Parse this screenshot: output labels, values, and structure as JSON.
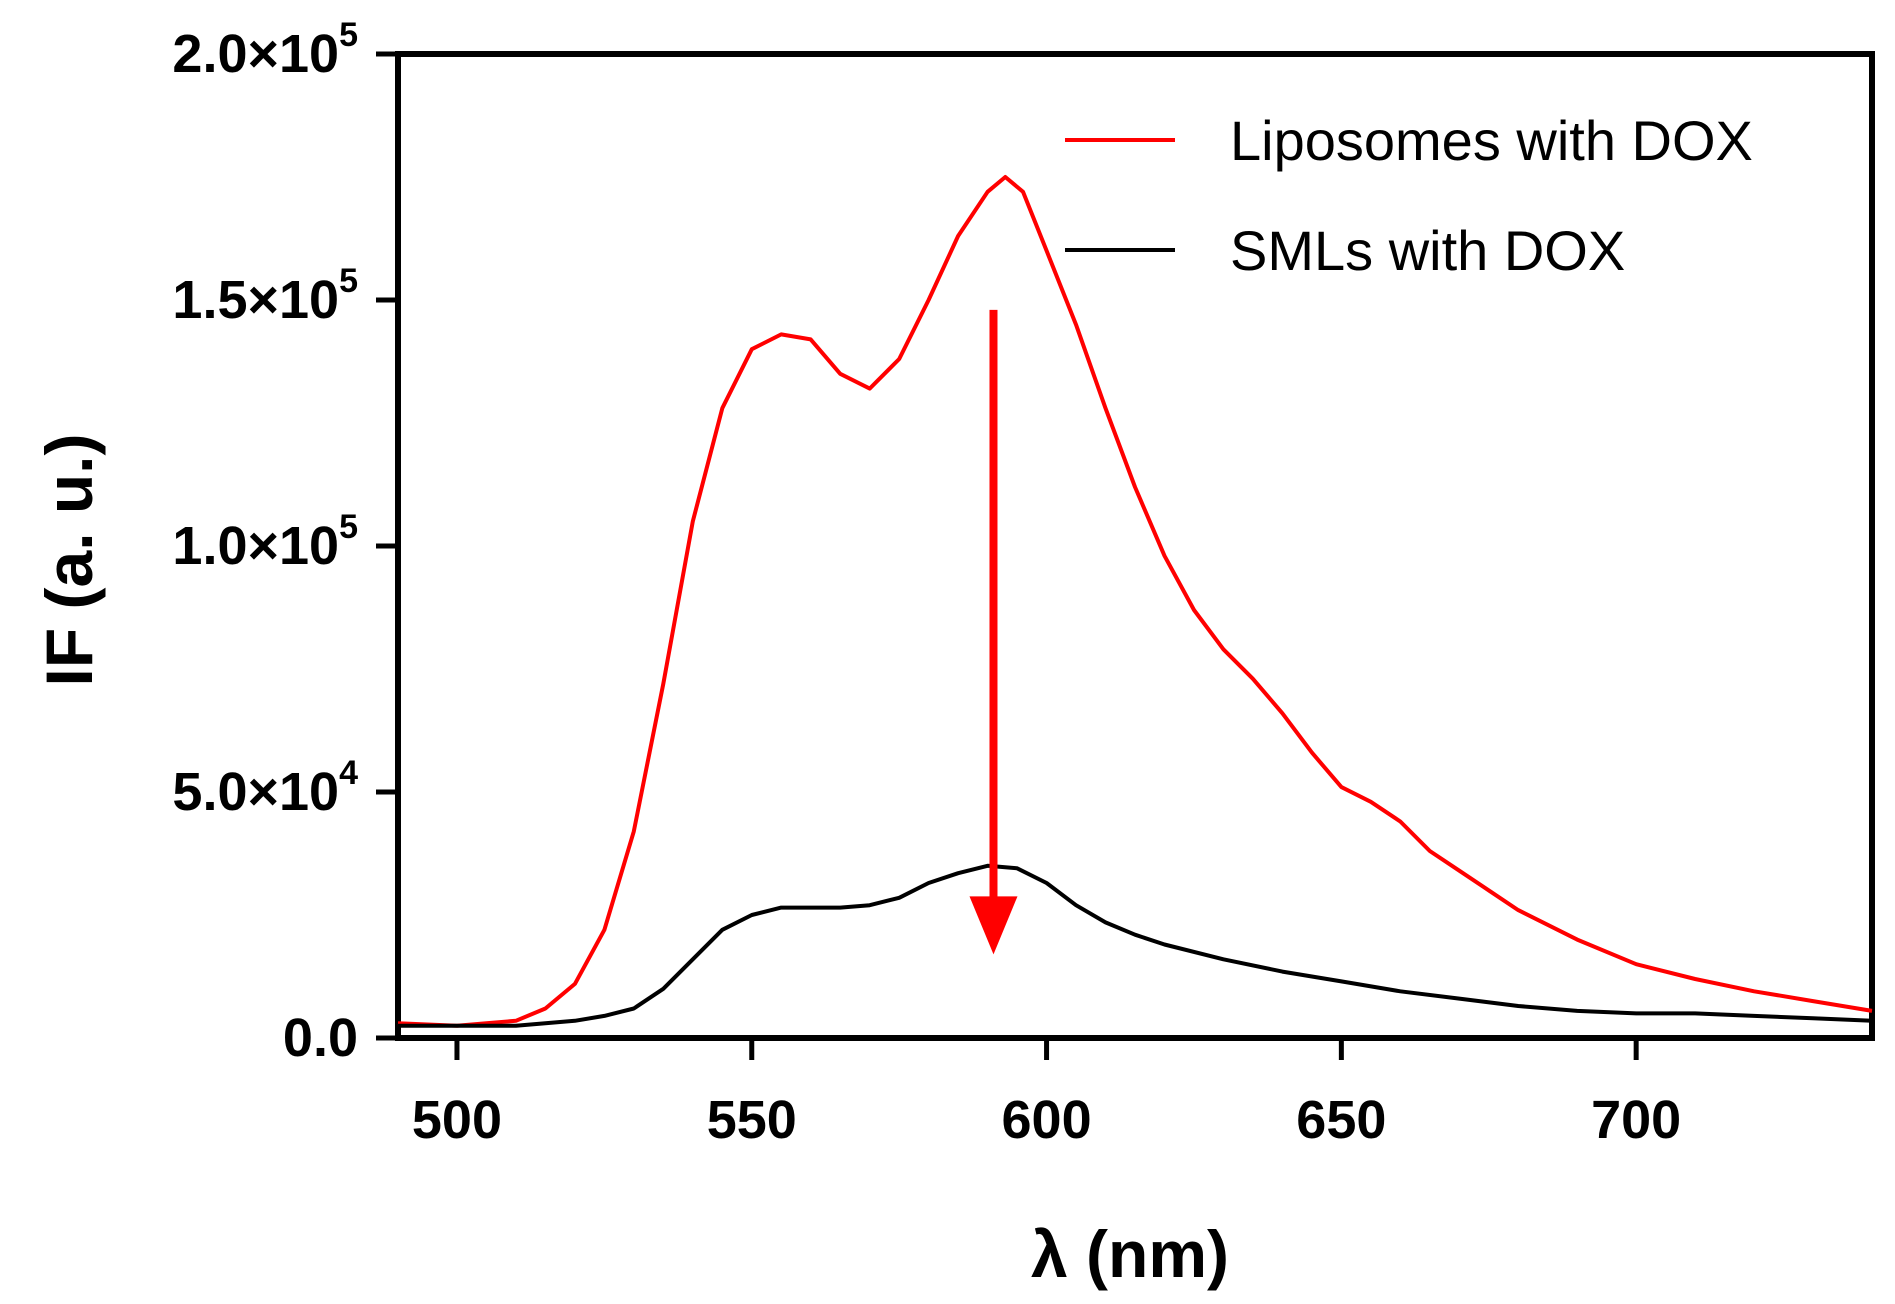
{
  "chart_data": {
    "type": "line",
    "title": "",
    "xlabel": "λ (nm)",
    "ylabel": "IF (a. u.)",
    "xlim": [
      490,
      740
    ],
    "ylim": [
      0,
      200000
    ],
    "x_ticks": [
      {
        "value": 500,
        "label": "500"
      },
      {
        "value": 550,
        "label": "550"
      },
      {
        "value": 600,
        "label": "600"
      },
      {
        "value": 650,
        "label": "650"
      },
      {
        "value": 700,
        "label": "700"
      }
    ],
    "y_ticks": [
      {
        "value": 0,
        "mantissa": "0.0",
        "exponent": ""
      },
      {
        "value": 50000,
        "mantissa": "5.0×10",
        "exponent": "4"
      },
      {
        "value": 100000,
        "mantissa": "1.0×10",
        "exponent": "5"
      },
      {
        "value": 150000,
        "mantissa": "1.5×10",
        "exponent": "5"
      },
      {
        "value": 200000,
        "mantissa": "2.0×10",
        "exponent": "5"
      }
    ],
    "legend_position": "top-right",
    "series": [
      {
        "name": "Liposomes with DOX",
        "color": "#ff0000",
        "x": [
          490,
          500,
          505,
          510,
          515,
          520,
          525,
          530,
          535,
          540,
          545,
          550,
          555,
          560,
          565,
          570,
          575,
          580,
          585,
          590,
          593,
          596,
          600,
          605,
          610,
          615,
          620,
          625,
          630,
          635,
          640,
          645,
          650,
          655,
          660,
          665,
          670,
          675,
          680,
          690,
          700,
          710,
          720,
          730,
          740
        ],
        "values": [
          3000,
          2500,
          3000,
          3500,
          6000,
          11000,
          22000,
          42000,
          72000,
          105000,
          128000,
          140000,
          143000,
          142000,
          135000,
          132000,
          138000,
          150000,
          163000,
          172000,
          175000,
          172000,
          160000,
          145000,
          128000,
          112000,
          98000,
          87000,
          79000,
          73000,
          66000,
          58000,
          51000,
          48000,
          44000,
          38000,
          34000,
          30000,
          26000,
          20000,
          15000,
          12000,
          9500,
          7500,
          5500
        ]
      },
      {
        "name": "SMLs with DOX",
        "color": "#000000",
        "x": [
          490,
          500,
          505,
          510,
          515,
          520,
          525,
          530,
          535,
          540,
          545,
          550,
          555,
          560,
          565,
          570,
          575,
          580,
          585,
          590,
          595,
          600,
          605,
          610,
          615,
          620,
          630,
          640,
          650,
          660,
          670,
          680,
          690,
          700,
          710,
          720,
          730,
          740
        ],
        "values": [
          2500,
          2500,
          2500,
          2500,
          3000,
          3500,
          4500,
          6000,
          10000,
          16000,
          22000,
          25000,
          26500,
          26500,
          26500,
          27000,
          28500,
          31500,
          33500,
          35000,
          34500,
          31500,
          27000,
          23500,
          21000,
          19000,
          16000,
          13500,
          11500,
          9500,
          8000,
          6500,
          5500,
          5000,
          5000,
          4500,
          4000,
          3500
        ]
      }
    ],
    "annotations": [
      {
        "type": "arrow",
        "color": "#ff0000",
        "x": 591,
        "y_from": 148000,
        "y_to": 17000,
        "direction": "down"
      }
    ]
  }
}
